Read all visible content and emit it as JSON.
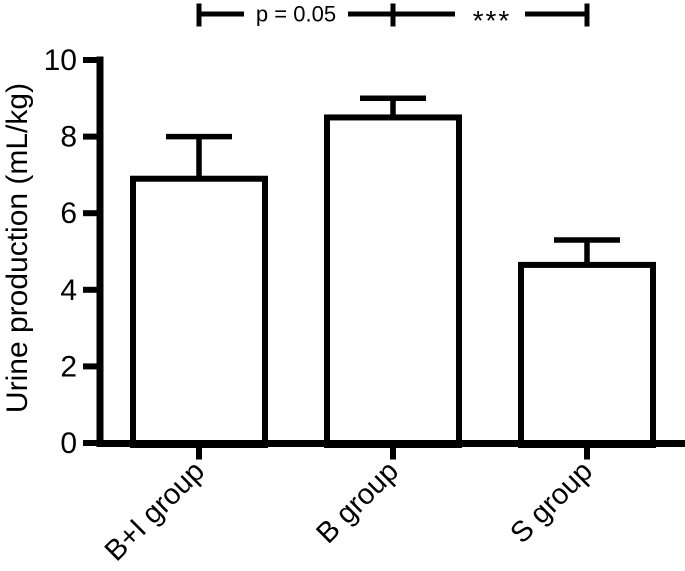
{
  "chart_data": {
    "type": "bar",
    "title": "",
    "xlabel": "",
    "ylabel": "Urine production (mL/kg)",
    "categories": [
      "B+I group",
      "B group",
      "S group"
    ],
    "values": [
      6.9,
      8.5,
      4.65
    ],
    "errors_upper": [
      1.1,
      0.5,
      0.65
    ],
    "error_bar_style": "upper-whisker-with-cap",
    "ylim": [
      0,
      10
    ],
    "yticks": [
      0,
      2,
      4,
      6,
      8,
      10
    ],
    "grid": false,
    "legend": null,
    "significance": {
      "bracket_groups": [
        "B+I group",
        "B group",
        "S group"
      ],
      "comparisons": [
        {
          "between": [
            "B+I group",
            "B group"
          ],
          "label": "p = 0.05"
        },
        {
          "between": [
            "B group",
            "S group"
          ],
          "label": "***"
        }
      ]
    },
    "style": {
      "bar_fill": "#ffffff",
      "line_color": "#000000",
      "background": "#ffffff"
    }
  }
}
